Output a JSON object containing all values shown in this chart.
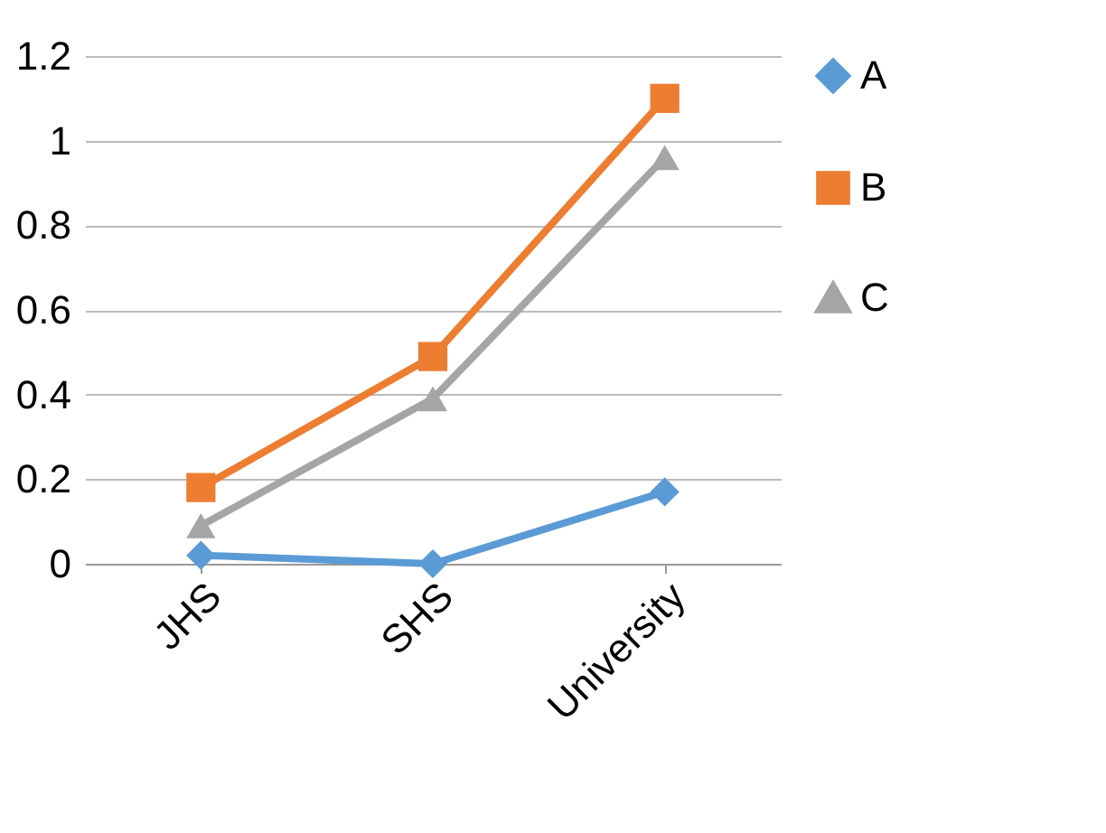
{
  "chart_data": {
    "type": "line",
    "categories": [
      "JHS",
      "SHS",
      "University"
    ],
    "series": [
      {
        "name": "A",
        "color": "#5b9bd5",
        "marker": "diamond",
        "values": [
          0.02,
          0,
          0.17
        ]
      },
      {
        "name": "B",
        "color": "#ed7d31",
        "marker": "square",
        "values": [
          0.18,
          0.49,
          1.1
        ]
      },
      {
        "name": "C",
        "color": "#a5a5a5",
        "marker": "triangle",
        "values": [
          0.09,
          0.39,
          0.96
        ]
      }
    ],
    "ylim": [
      0,
      1.2
    ],
    "yticks": [
      0,
      0.2,
      0.4,
      0.6,
      0.8,
      1,
      1.2
    ],
    "grid": "y",
    "legend": "right"
  }
}
